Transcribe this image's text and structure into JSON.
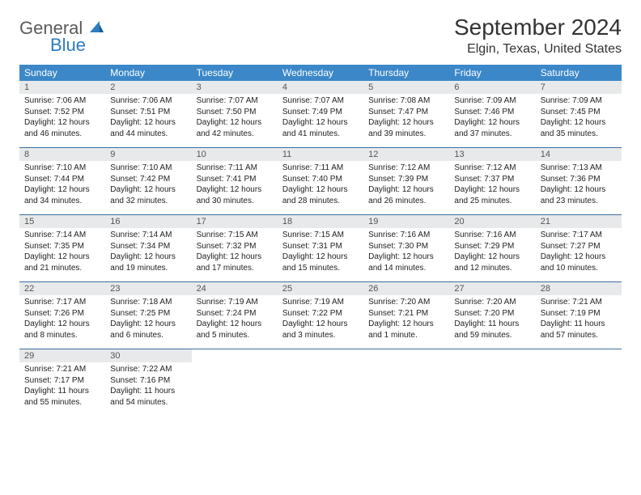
{
  "logo": {
    "word1": "General",
    "word2": "Blue"
  },
  "title": "September 2024",
  "location": "Elgin, Texas, United States",
  "colors": {
    "header_bg": "#3b87c8",
    "header_text": "#ffffff",
    "daynum_bg": "#e8e9ea",
    "week_border": "#3b6fa0",
    "logo_gray": "#5a5a5a",
    "logo_blue": "#2b7cc0"
  },
  "day_names": [
    "Sunday",
    "Monday",
    "Tuesday",
    "Wednesday",
    "Thursday",
    "Friday",
    "Saturday"
  ],
  "weeks": [
    [
      {
        "n": "1",
        "sr": "Sunrise: 7:06 AM",
        "ss": "Sunset: 7:52 PM",
        "d1": "Daylight: 12 hours",
        "d2": "and 46 minutes."
      },
      {
        "n": "2",
        "sr": "Sunrise: 7:06 AM",
        "ss": "Sunset: 7:51 PM",
        "d1": "Daylight: 12 hours",
        "d2": "and 44 minutes."
      },
      {
        "n": "3",
        "sr": "Sunrise: 7:07 AM",
        "ss": "Sunset: 7:50 PM",
        "d1": "Daylight: 12 hours",
        "d2": "and 42 minutes."
      },
      {
        "n": "4",
        "sr": "Sunrise: 7:07 AM",
        "ss": "Sunset: 7:49 PM",
        "d1": "Daylight: 12 hours",
        "d2": "and 41 minutes."
      },
      {
        "n": "5",
        "sr": "Sunrise: 7:08 AM",
        "ss": "Sunset: 7:47 PM",
        "d1": "Daylight: 12 hours",
        "d2": "and 39 minutes."
      },
      {
        "n": "6",
        "sr": "Sunrise: 7:09 AM",
        "ss": "Sunset: 7:46 PM",
        "d1": "Daylight: 12 hours",
        "d2": "and 37 minutes."
      },
      {
        "n": "7",
        "sr": "Sunrise: 7:09 AM",
        "ss": "Sunset: 7:45 PM",
        "d1": "Daylight: 12 hours",
        "d2": "and 35 minutes."
      }
    ],
    [
      {
        "n": "8",
        "sr": "Sunrise: 7:10 AM",
        "ss": "Sunset: 7:44 PM",
        "d1": "Daylight: 12 hours",
        "d2": "and 34 minutes."
      },
      {
        "n": "9",
        "sr": "Sunrise: 7:10 AM",
        "ss": "Sunset: 7:42 PM",
        "d1": "Daylight: 12 hours",
        "d2": "and 32 minutes."
      },
      {
        "n": "10",
        "sr": "Sunrise: 7:11 AM",
        "ss": "Sunset: 7:41 PM",
        "d1": "Daylight: 12 hours",
        "d2": "and 30 minutes."
      },
      {
        "n": "11",
        "sr": "Sunrise: 7:11 AM",
        "ss": "Sunset: 7:40 PM",
        "d1": "Daylight: 12 hours",
        "d2": "and 28 minutes."
      },
      {
        "n": "12",
        "sr": "Sunrise: 7:12 AM",
        "ss": "Sunset: 7:39 PM",
        "d1": "Daylight: 12 hours",
        "d2": "and 26 minutes."
      },
      {
        "n": "13",
        "sr": "Sunrise: 7:12 AM",
        "ss": "Sunset: 7:37 PM",
        "d1": "Daylight: 12 hours",
        "d2": "and 25 minutes."
      },
      {
        "n": "14",
        "sr": "Sunrise: 7:13 AM",
        "ss": "Sunset: 7:36 PM",
        "d1": "Daylight: 12 hours",
        "d2": "and 23 minutes."
      }
    ],
    [
      {
        "n": "15",
        "sr": "Sunrise: 7:14 AM",
        "ss": "Sunset: 7:35 PM",
        "d1": "Daylight: 12 hours",
        "d2": "and 21 minutes."
      },
      {
        "n": "16",
        "sr": "Sunrise: 7:14 AM",
        "ss": "Sunset: 7:34 PM",
        "d1": "Daylight: 12 hours",
        "d2": "and 19 minutes."
      },
      {
        "n": "17",
        "sr": "Sunrise: 7:15 AM",
        "ss": "Sunset: 7:32 PM",
        "d1": "Daylight: 12 hours",
        "d2": "and 17 minutes."
      },
      {
        "n": "18",
        "sr": "Sunrise: 7:15 AM",
        "ss": "Sunset: 7:31 PM",
        "d1": "Daylight: 12 hours",
        "d2": "and 15 minutes."
      },
      {
        "n": "19",
        "sr": "Sunrise: 7:16 AM",
        "ss": "Sunset: 7:30 PM",
        "d1": "Daylight: 12 hours",
        "d2": "and 14 minutes."
      },
      {
        "n": "20",
        "sr": "Sunrise: 7:16 AM",
        "ss": "Sunset: 7:29 PM",
        "d1": "Daylight: 12 hours",
        "d2": "and 12 minutes."
      },
      {
        "n": "21",
        "sr": "Sunrise: 7:17 AM",
        "ss": "Sunset: 7:27 PM",
        "d1": "Daylight: 12 hours",
        "d2": "and 10 minutes."
      }
    ],
    [
      {
        "n": "22",
        "sr": "Sunrise: 7:17 AM",
        "ss": "Sunset: 7:26 PM",
        "d1": "Daylight: 12 hours",
        "d2": "and 8 minutes."
      },
      {
        "n": "23",
        "sr": "Sunrise: 7:18 AM",
        "ss": "Sunset: 7:25 PM",
        "d1": "Daylight: 12 hours",
        "d2": "and 6 minutes."
      },
      {
        "n": "24",
        "sr": "Sunrise: 7:19 AM",
        "ss": "Sunset: 7:24 PM",
        "d1": "Daylight: 12 hours",
        "d2": "and 5 minutes."
      },
      {
        "n": "25",
        "sr": "Sunrise: 7:19 AM",
        "ss": "Sunset: 7:22 PM",
        "d1": "Daylight: 12 hours",
        "d2": "and 3 minutes."
      },
      {
        "n": "26",
        "sr": "Sunrise: 7:20 AM",
        "ss": "Sunset: 7:21 PM",
        "d1": "Daylight: 12 hours",
        "d2": "and 1 minute."
      },
      {
        "n": "27",
        "sr": "Sunrise: 7:20 AM",
        "ss": "Sunset: 7:20 PM",
        "d1": "Daylight: 11 hours",
        "d2": "and 59 minutes."
      },
      {
        "n": "28",
        "sr": "Sunrise: 7:21 AM",
        "ss": "Sunset: 7:19 PM",
        "d1": "Daylight: 11 hours",
        "d2": "and 57 minutes."
      }
    ],
    [
      {
        "n": "29",
        "sr": "Sunrise: 7:21 AM",
        "ss": "Sunset: 7:17 PM",
        "d1": "Daylight: 11 hours",
        "d2": "and 55 minutes."
      },
      {
        "n": "30",
        "sr": "Sunrise: 7:22 AM",
        "ss": "Sunset: 7:16 PM",
        "d1": "Daylight: 11 hours",
        "d2": "and 54 minutes."
      },
      null,
      null,
      null,
      null,
      null
    ]
  ]
}
